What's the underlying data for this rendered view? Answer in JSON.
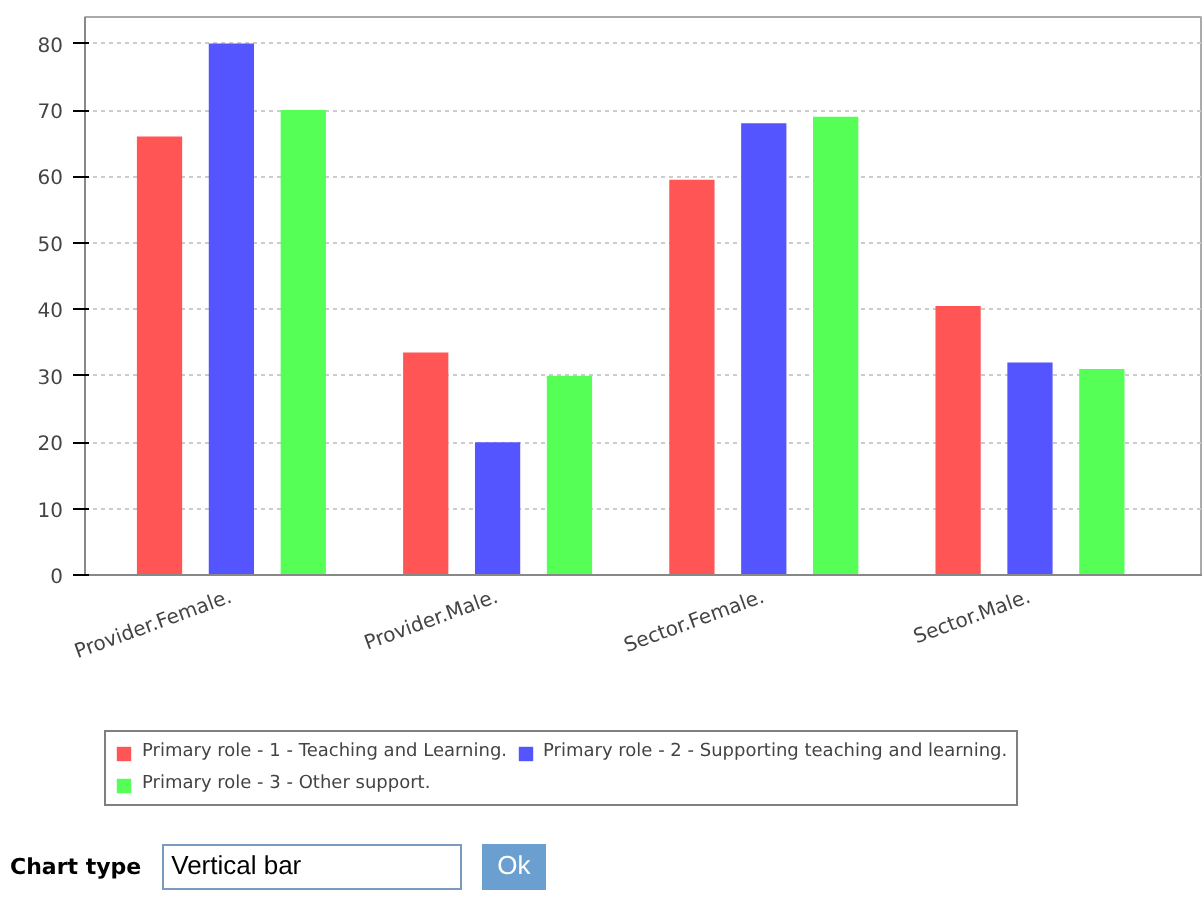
{
  "chart_data": {
    "type": "bar",
    "categories": [
      "Provider.Female.",
      "Provider.Male.",
      "Sector.Female.",
      "Sector.Male."
    ],
    "series": [
      {
        "name": "Primary role - 1 - Teaching and Learning.",
        "color": "#ff5555",
        "values": [
          66,
          33.5,
          59.5,
          40.5
        ]
      },
      {
        "name": "Primary role - 2 - Supporting teaching and learning.",
        "color": "#5555ff",
        "values": [
          80,
          20,
          68,
          32
        ]
      },
      {
        "name": "Primary role - 3 - Other support.",
        "color": "#55ff55",
        "values": [
          70,
          30,
          69,
          31
        ]
      }
    ],
    "ylim": [
      0,
      84
    ],
    "yticks": [
      0,
      10,
      20,
      30,
      40,
      50,
      60,
      70,
      80
    ],
    "grid": "y",
    "legend": "bottom",
    "annotations": [
      "Chart type",
      "Vertical bar",
      "Ok"
    ]
  }
}
